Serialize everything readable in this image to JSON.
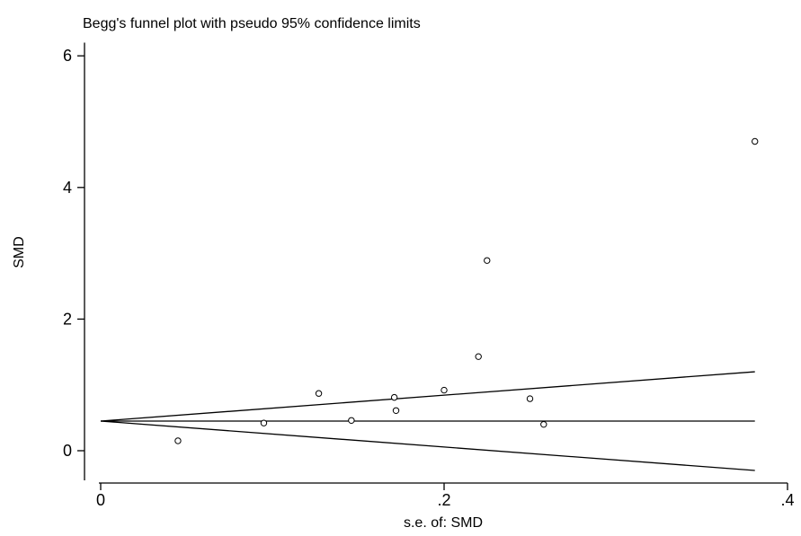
{
  "chart_data": {
    "type": "scatter",
    "title": "Begg's funnel plot with pseudo 95% confidence limits",
    "xlabel": "s.e. of: SMD",
    "ylabel": "SMD",
    "xlim": [
      0,
      0.4
    ],
    "ylim": [
      -0.45,
      6.2
    ],
    "x_ticks": [
      0,
      0.2,
      0.4
    ],
    "x_tick_labels": [
      "0",
      ".2",
      ".4"
    ],
    "y_ticks": [
      0,
      2,
      4,
      6
    ],
    "y_tick_labels": [
      "0",
      "2",
      "4",
      "6"
    ],
    "grid": false,
    "points": [
      {
        "x": 0.045,
        "y": 0.15
      },
      {
        "x": 0.095,
        "y": 0.42
      },
      {
        "x": 0.127,
        "y": 0.87
      },
      {
        "x": 0.146,
        "y": 0.46
      },
      {
        "x": 0.171,
        "y": 0.81
      },
      {
        "x": 0.172,
        "y": 0.61
      },
      {
        "x": 0.2,
        "y": 0.92
      },
      {
        "x": 0.22,
        "y": 1.43
      },
      {
        "x": 0.225,
        "y": 2.89
      },
      {
        "x": 0.25,
        "y": 0.79
      },
      {
        "x": 0.258,
        "y": 0.4
      },
      {
        "x": 0.381,
        "y": 4.7
      }
    ],
    "pooled_estimate": 0.45,
    "confidence_limits": {
      "x": [
        0,
        0.381
      ],
      "upper": [
        0.45,
        1.2
      ],
      "lower": [
        0.45,
        -0.3
      ]
    }
  }
}
